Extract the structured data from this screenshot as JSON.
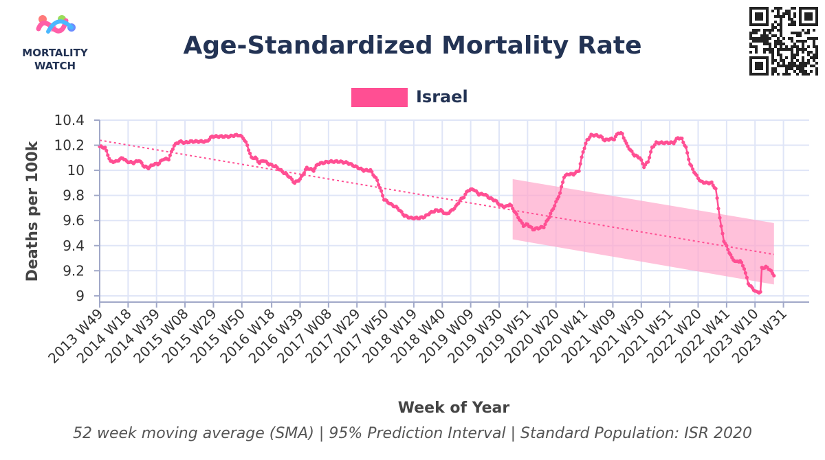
{
  "logo": {
    "line1": "MORTALITY",
    "line2": "WATCH"
  },
  "colors": {
    "series": "#ff4f93",
    "band": "#ffa6cb",
    "title": "#233354",
    "grid": "#dfe5f7",
    "axis": "#a0a8c8"
  },
  "chart_data": {
    "type": "line",
    "title": "Age-Standardized Mortality Rate",
    "legend": [
      {
        "name": "Israel",
        "color": "#ff4f93"
      }
    ],
    "xlabel": "Week of Year",
    "ylabel": "Deaths per 100k",
    "caption": "52 week moving average (SMA) | 95% Prediction Interval | Standard Population: ISR 2020",
    "ylim": [
      8.95,
      10.4
    ],
    "yticks": [
      "9",
      "9.2",
      "9.4",
      "9.6",
      "9.8",
      "10",
      "10.2",
      "10.4"
    ],
    "ytick_values": [
      9,
      9.2,
      9.4,
      9.6,
      9.8,
      10,
      10.2,
      10.4
    ],
    "x_count": 525,
    "xticks": [
      "2013 W49",
      "2014 W18",
      "2014 W39",
      "2015 W08",
      "2015 W29",
      "2015 W50",
      "2016 W18",
      "2016 W39",
      "2017 W08",
      "2017 W29",
      "2017 W50",
      "2018 W19",
      "2018 W40",
      "2019 W09",
      "2019 W30",
      "2019 W51",
      "2020 W20",
      "2020 W41",
      "2021 W09",
      "2021 W30",
      "2021 W51",
      "2022 W20",
      "2022 W41",
      "2023 W10",
      "2023 W31"
    ],
    "xtick_positions": [
      0,
      21,
      42,
      63,
      84,
      105,
      127,
      148,
      169,
      190,
      211,
      232,
      253,
      274,
      295,
      316,
      337,
      358,
      379,
      400,
      421,
      442,
      463,
      484,
      505
    ],
    "series": [
      {
        "name": "Israel",
        "anchors": [
          [
            0,
            10.19
          ],
          [
            4,
            10.18
          ],
          [
            8,
            10.07
          ],
          [
            12,
            10.07
          ],
          [
            17,
            10.1
          ],
          [
            20,
            10.07
          ],
          [
            25,
            10.06
          ],
          [
            29,
            10.08
          ],
          [
            33,
            10.03
          ],
          [
            36,
            10.02
          ],
          [
            40,
            10.05
          ],
          [
            43,
            10.05
          ],
          [
            47,
            10.09
          ],
          [
            51,
            10.09
          ],
          [
            55,
            10.2
          ],
          [
            59,
            10.23
          ],
          [
            63,
            10.22
          ],
          [
            67,
            10.23
          ],
          [
            71,
            10.23
          ],
          [
            75,
            10.23
          ],
          [
            79,
            10.23
          ],
          [
            83,
            10.27
          ],
          [
            88,
            10.27
          ],
          [
            92,
            10.27
          ],
          [
            96,
            10.27
          ],
          [
            100,
            10.28
          ],
          [
            103,
            10.28
          ],
          [
            106,
            10.26
          ],
          [
            109,
            10.2
          ],
          [
            112,
            10.1
          ],
          [
            115,
            10.1
          ],
          [
            118,
            10.06
          ],
          [
            121,
            10.08
          ],
          [
            125,
            10.05
          ],
          [
            130,
            10.03
          ],
          [
            135,
            9.99
          ],
          [
            140,
            9.95
          ],
          [
            144,
            9.9
          ],
          [
            148,
            9.93
          ],
          [
            153,
            10.02
          ],
          [
            158,
            10.0
          ],
          [
            161,
            10.05
          ],
          [
            165,
            10.06
          ],
          [
            170,
            10.07
          ],
          [
            177,
            10.07
          ],
          [
            183,
            10.06
          ],
          [
            189,
            10.03
          ],
          [
            195,
            10.0
          ],
          [
            200,
            10.0
          ],
          [
            205,
            9.92
          ],
          [
            210,
            9.77
          ],
          [
            215,
            9.73
          ],
          [
            220,
            9.7
          ],
          [
            225,
            9.64
          ],
          [
            230,
            9.62
          ],
          [
            236,
            9.62
          ],
          [
            240,
            9.63
          ],
          [
            244,
            9.66
          ],
          [
            248,
            9.68
          ],
          [
            252,
            9.68
          ],
          [
            256,
            9.65
          ],
          [
            260,
            9.68
          ],
          [
            263,
            9.71
          ],
          [
            266,
            9.76
          ],
          [
            269,
            9.79
          ],
          [
            272,
            9.84
          ],
          [
            276,
            9.85
          ],
          [
            280,
            9.81
          ],
          [
            284,
            9.81
          ],
          [
            288,
            9.78
          ],
          [
            292,
            9.76
          ],
          [
            296,
            9.72
          ],
          [
            300,
            9.71
          ],
          [
            303,
            9.73
          ],
          [
            306,
            9.68
          ],
          [
            310,
            9.61
          ],
          [
            313,
            9.56
          ],
          [
            316,
            9.57
          ],
          [
            320,
            9.53
          ],
          [
            324,
            9.54
          ],
          [
            328,
            9.55
          ],
          [
            332,
            9.63
          ],
          [
            336,
            9.72
          ],
          [
            340,
            9.82
          ],
          [
            343,
            9.95
          ],
          [
            346,
            9.97
          ],
          [
            350,
            9.97
          ],
          [
            354,
            10.0
          ],
          [
            357,
            10.15
          ],
          [
            360,
            10.24
          ],
          [
            363,
            10.28
          ],
          [
            366,
            10.28
          ],
          [
            370,
            10.27
          ],
          [
            373,
            10.24
          ],
          [
            377,
            10.25
          ],
          [
            380,
            10.25
          ],
          [
            383,
            10.3
          ],
          [
            386,
            10.29
          ],
          [
            389,
            10.21
          ],
          [
            392,
            10.16
          ],
          [
            395,
            10.12
          ],
          [
            399,
            10.1
          ],
          [
            402,
            10.03
          ],
          [
            405,
            10.07
          ],
          [
            408,
            10.18
          ],
          [
            411,
            10.22
          ],
          [
            415,
            10.22
          ],
          [
            419,
            10.22
          ],
          [
            424,
            10.22
          ],
          [
            427,
            10.26
          ],
          [
            430,
            10.25
          ],
          [
            433,
            10.18
          ],
          [
            436,
            10.05
          ],
          [
            440,
            9.97
          ],
          [
            444,
            9.91
          ],
          [
            448,
            9.9
          ],
          [
            452,
            9.9
          ],
          [
            455,
            9.85
          ],
          [
            457,
            9.7
          ],
          [
            459,
            9.55
          ],
          [
            461,
            9.44
          ],
          [
            464,
            9.37
          ],
          [
            467,
            9.3
          ],
          [
            470,
            9.27
          ],
          [
            473,
            9.28
          ],
          [
            476,
            9.22
          ],
          [
            479,
            9.1
          ],
          [
            482,
            9.06
          ],
          [
            485,
            9.03
          ],
          [
            488,
            9.03
          ],
          [
            489,
            9.22
          ],
          [
            492,
            9.23
          ],
          [
            495,
            9.21
          ],
          [
            498,
            9.16
          ]
        ]
      }
    ],
    "trend": {
      "start": [
        0,
        10.24
      ],
      "end": [
        498,
        9.33
      ]
    },
    "prediction_interval": {
      "from_index": 305,
      "to_index": 498,
      "upper": [
        9.93,
        9.58
      ],
      "lower": [
        9.45,
        9.09
      ]
    }
  }
}
